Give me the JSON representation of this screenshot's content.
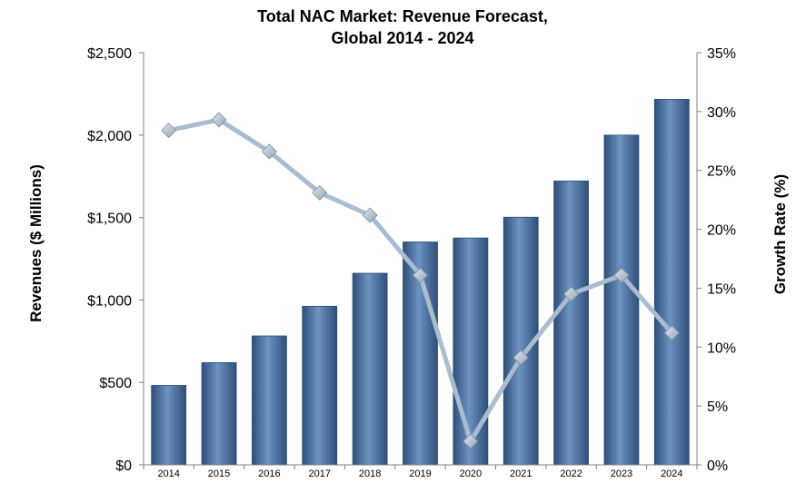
{
  "chart_data": {
    "type": "bar",
    "title_lines": [
      "Total NAC Market: Revenue Forecast,",
      "Global 2014 - 2024"
    ],
    "categories": [
      "2014",
      "2015",
      "2016",
      "2017",
      "2018",
      "2019",
      "2020",
      "2021",
      "2022",
      "2023",
      "2024"
    ],
    "series": [
      {
        "name": "Revenues",
        "type": "bar",
        "axis": "left",
        "values": [
          482,
          620,
          782,
          962,
          1162,
          1352,
          1376,
          1502,
          1722,
          2000,
          2217
        ]
      },
      {
        "name": "Growth Rate",
        "type": "line",
        "axis": "right",
        "values": [
          28.4,
          29.3,
          26.6,
          23.1,
          21.2,
          16.1,
          2.0,
          9.1,
          14.5,
          16.1,
          11.2
        ]
      }
    ],
    "ylabel": "Revenues ($ Millions)",
    "y2label": "Growth Rate (%)",
    "ylim": [
      0,
      2500
    ],
    "y2lim": [
      0,
      35
    ],
    "yticks": [
      {
        "value": 0,
        "label": "$0"
      },
      {
        "value": 500,
        "label": "$500"
      },
      {
        "value": 1000,
        "label": "$1,000"
      },
      {
        "value": 1500,
        "label": "$1,500"
      },
      {
        "value": 2000,
        "label": "$2,000"
      },
      {
        "value": 2500,
        "label": "$2,500"
      }
    ],
    "y2ticks": [
      {
        "value": 0,
        "label": "0%"
      },
      {
        "value": 5,
        "label": "5%"
      },
      {
        "value": 10,
        "label": "10%"
      },
      {
        "value": 15,
        "label": "15%"
      },
      {
        "value": 20,
        "label": "20%"
      },
      {
        "value": 25,
        "label": "25%"
      },
      {
        "value": 30,
        "label": "30%"
      },
      {
        "value": 35,
        "label": "35%"
      }
    ],
    "grid": false,
    "legend": "none",
    "colors": {
      "bar": "#4a6f9c",
      "bar_dark": "#2e4f78",
      "bar_light": "#6d93c2",
      "line": "#a9bcd0",
      "marker": "#b9c7d6"
    }
  }
}
